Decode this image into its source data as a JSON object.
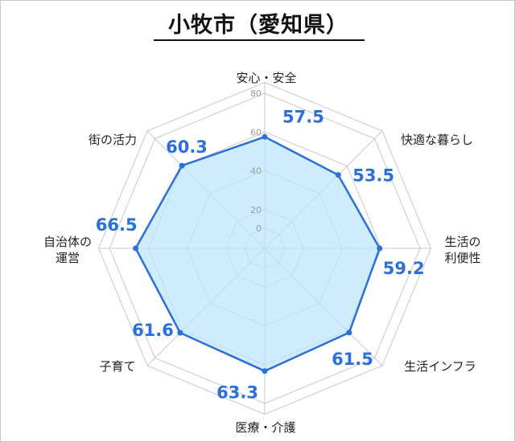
{
  "title": "小牧市（愛知県）",
  "colors": {
    "line": "#2b6fd9",
    "fill": "#bfe6fb",
    "grid": "#c8c8c8",
    "value_text": "#2b6fd9"
  },
  "chart_data": {
    "type": "radar",
    "title": "小牧市（愛知県）",
    "rlim": [
      0,
      80
    ],
    "ticks": [
      "0",
      "20",
      "40",
      "60",
      "80"
    ],
    "categories": [
      [
        "安心・安全"
      ],
      [
        "快適な暮らし"
      ],
      [
        "生活の",
        "利便性"
      ],
      [
        "生活インフラ"
      ],
      [
        "医療・介護"
      ],
      [
        "子育て"
      ],
      [
        "自治体の",
        "運営"
      ],
      [
        "街の活力"
      ]
    ],
    "values": [
      57.5,
      53.5,
      59.2,
      61.5,
      63.3,
      61.6,
      66.5,
      60.3
    ],
    "value_labels": [
      "57.5",
      "53.5",
      "59.2",
      "61.5",
      "63.3",
      "61.6",
      "66.5",
      "60.3"
    ]
  }
}
